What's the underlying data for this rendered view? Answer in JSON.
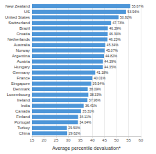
{
  "chart_data": {
    "type": "bar",
    "orientation": "horizontal",
    "categories": [
      "New Zealand",
      "US",
      "United States",
      "Switzerland",
      "Brazil",
      "Croatia",
      "Netherlands",
      "Australia",
      "Norway",
      "Argentina",
      "Austria",
      "Hungary",
      "Germany",
      "France",
      "Singapore",
      "Denmark",
      "Luxembourg",
      "Ireland",
      "India",
      "Canada",
      "Finland",
      "Portugal",
      "Turkey",
      "China"
    ],
    "values": [
      55.67,
      53.94,
      50.82,
      47.73,
      46.39,
      46.34,
      46.23,
      45.34,
      45.07,
      44.82,
      44.39,
      44.35,
      41.18,
      40.01,
      39.54,
      38.09,
      38.33,
      37.96,
      36.41,
      35.31,
      34.11,
      34.04,
      29.5,
      29.62
    ],
    "value_labels": [
      "55.67%",
      "53.94%",
      "50.82%",
      "47.73%",
      "46.39%",
      "46.34%",
      "46.23%",
      "45.34%",
      "45.07%",
      "44.82%",
      "44.39%",
      "44.35%",
      "41.18%",
      "40.01%",
      "39.54%",
      "38.09%",
      "38.33%",
      "37.96%",
      "36.41%",
      "35.31%",
      "34.11%",
      "34.04%",
      "29.50%",
      "29.62%"
    ],
    "data_labels": true,
    "color": "#4d96d8",
    "xlabel": "Average percentile devaluation*",
    "xlim": [
      15,
      60
    ],
    "xticks": [
      15,
      20,
      25,
      30,
      35,
      40,
      45,
      50,
      55,
      60
    ],
    "grid": true
  }
}
